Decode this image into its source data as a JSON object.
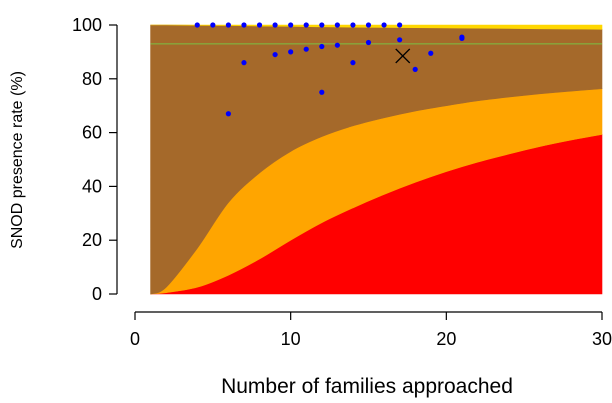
{
  "chart_data": {
    "type": "area",
    "xlabel": "Number of families approached",
    "ylabel": "SNOD presence rate (%)",
    "xlim": [
      0,
      30
    ],
    "ylim": [
      0,
      100
    ],
    "x_ticks": [
      0,
      10,
      20,
      30
    ],
    "x_tick_labels": [
      "0",
      "10",
      "20",
      "30"
    ],
    "y_ticks": [
      0,
      20,
      40,
      60,
      80,
      100
    ],
    "y_tick_labels": [
      "0",
      "20",
      "40",
      "60",
      "80",
      "100"
    ],
    "grid": false,
    "bands": [
      {
        "color": "#ff0000",
        "x": [
          1,
          2,
          4,
          6,
          8,
          10,
          12,
          14,
          16,
          18,
          20,
          22,
          24,
          26,
          28,
          30
        ],
        "lower": [
          0,
          0,
          0,
          0,
          0,
          0,
          0,
          0,
          0,
          0,
          0,
          0,
          0,
          0,
          0,
          0
        ],
        "upper": [
          0,
          0.5,
          2.5,
          7,
          13,
          20,
          26.5,
          32,
          37,
          41.5,
          45.5,
          49,
          52,
          54.8,
          57.2,
          59.3
        ]
      },
      {
        "color": "#ffa500",
        "x": [
          1,
          2,
          4,
          6,
          8,
          10,
          12,
          14,
          16,
          18,
          20,
          22,
          24,
          26,
          28,
          30
        ],
        "lower": [
          0,
          0.5,
          2.5,
          7,
          13,
          20,
          26.5,
          32,
          37,
          41.5,
          45.5,
          49,
          52,
          54.8,
          57.2,
          59.3
        ],
        "upper": [
          0,
          2.5,
          17,
          34,
          45,
          53,
          58.5,
          62.5,
          65.5,
          68,
          70,
          71.8,
          73.2,
          74.4,
          75.4,
          76.3
        ]
      },
      {
        "color": "#a5692a",
        "x": [
          1,
          2,
          4,
          6,
          8,
          10,
          12,
          14,
          16,
          18,
          20,
          22,
          24,
          26,
          28,
          30
        ],
        "lower": [
          0,
          2.5,
          17,
          34,
          45,
          53,
          58.5,
          62.5,
          65.5,
          68,
          70,
          71.8,
          73.2,
          74.4,
          75.4,
          76.3
        ],
        "upper": [
          100,
          100,
          99.9,
          99.8,
          99.6,
          99.5,
          99.3,
          99.2,
          99.1,
          99,
          98.9,
          98.8,
          98.7,
          98.6,
          98.5,
          98.4
        ]
      },
      {
        "color": "#ffd700",
        "x": [
          1,
          2,
          4,
          6,
          8,
          10,
          12,
          14,
          16,
          18,
          20,
          22,
          24,
          26,
          28,
          30
        ],
        "lower": [
          100,
          100,
          99.9,
          99.8,
          99.6,
          99.5,
          99.3,
          99.2,
          99.1,
          99,
          98.9,
          98.8,
          98.7,
          98.6,
          98.5,
          98.4
        ],
        "upper": [
          100,
          100,
          100,
          100,
          100,
          100,
          100,
          100,
          100,
          100,
          100,
          100,
          100,
          100,
          100,
          100
        ]
      }
    ],
    "reference_line": {
      "y": 93,
      "color": "#7ac143"
    },
    "points": {
      "color": "#0000ff",
      "x": [
        4,
        5,
        6,
        7,
        8,
        9,
        10,
        11,
        12,
        13,
        14,
        15,
        16,
        17,
        6,
        7,
        9,
        10,
        11,
        12,
        13,
        14,
        15,
        17,
        18,
        19,
        21,
        12,
        21
      ],
      "y": [
        100,
        100,
        100,
        100,
        100,
        100,
        100,
        100,
        100,
        100,
        100,
        100,
        100,
        100,
        67,
        86,
        89,
        90,
        91,
        92,
        92.5,
        86,
        93.5,
        94.5,
        83.5,
        89.5,
        95.5,
        75,
        95
      ]
    },
    "mean_marker": {
      "x": 17.2,
      "y": 88.5,
      "shape": "x",
      "color": "#000000"
    }
  }
}
